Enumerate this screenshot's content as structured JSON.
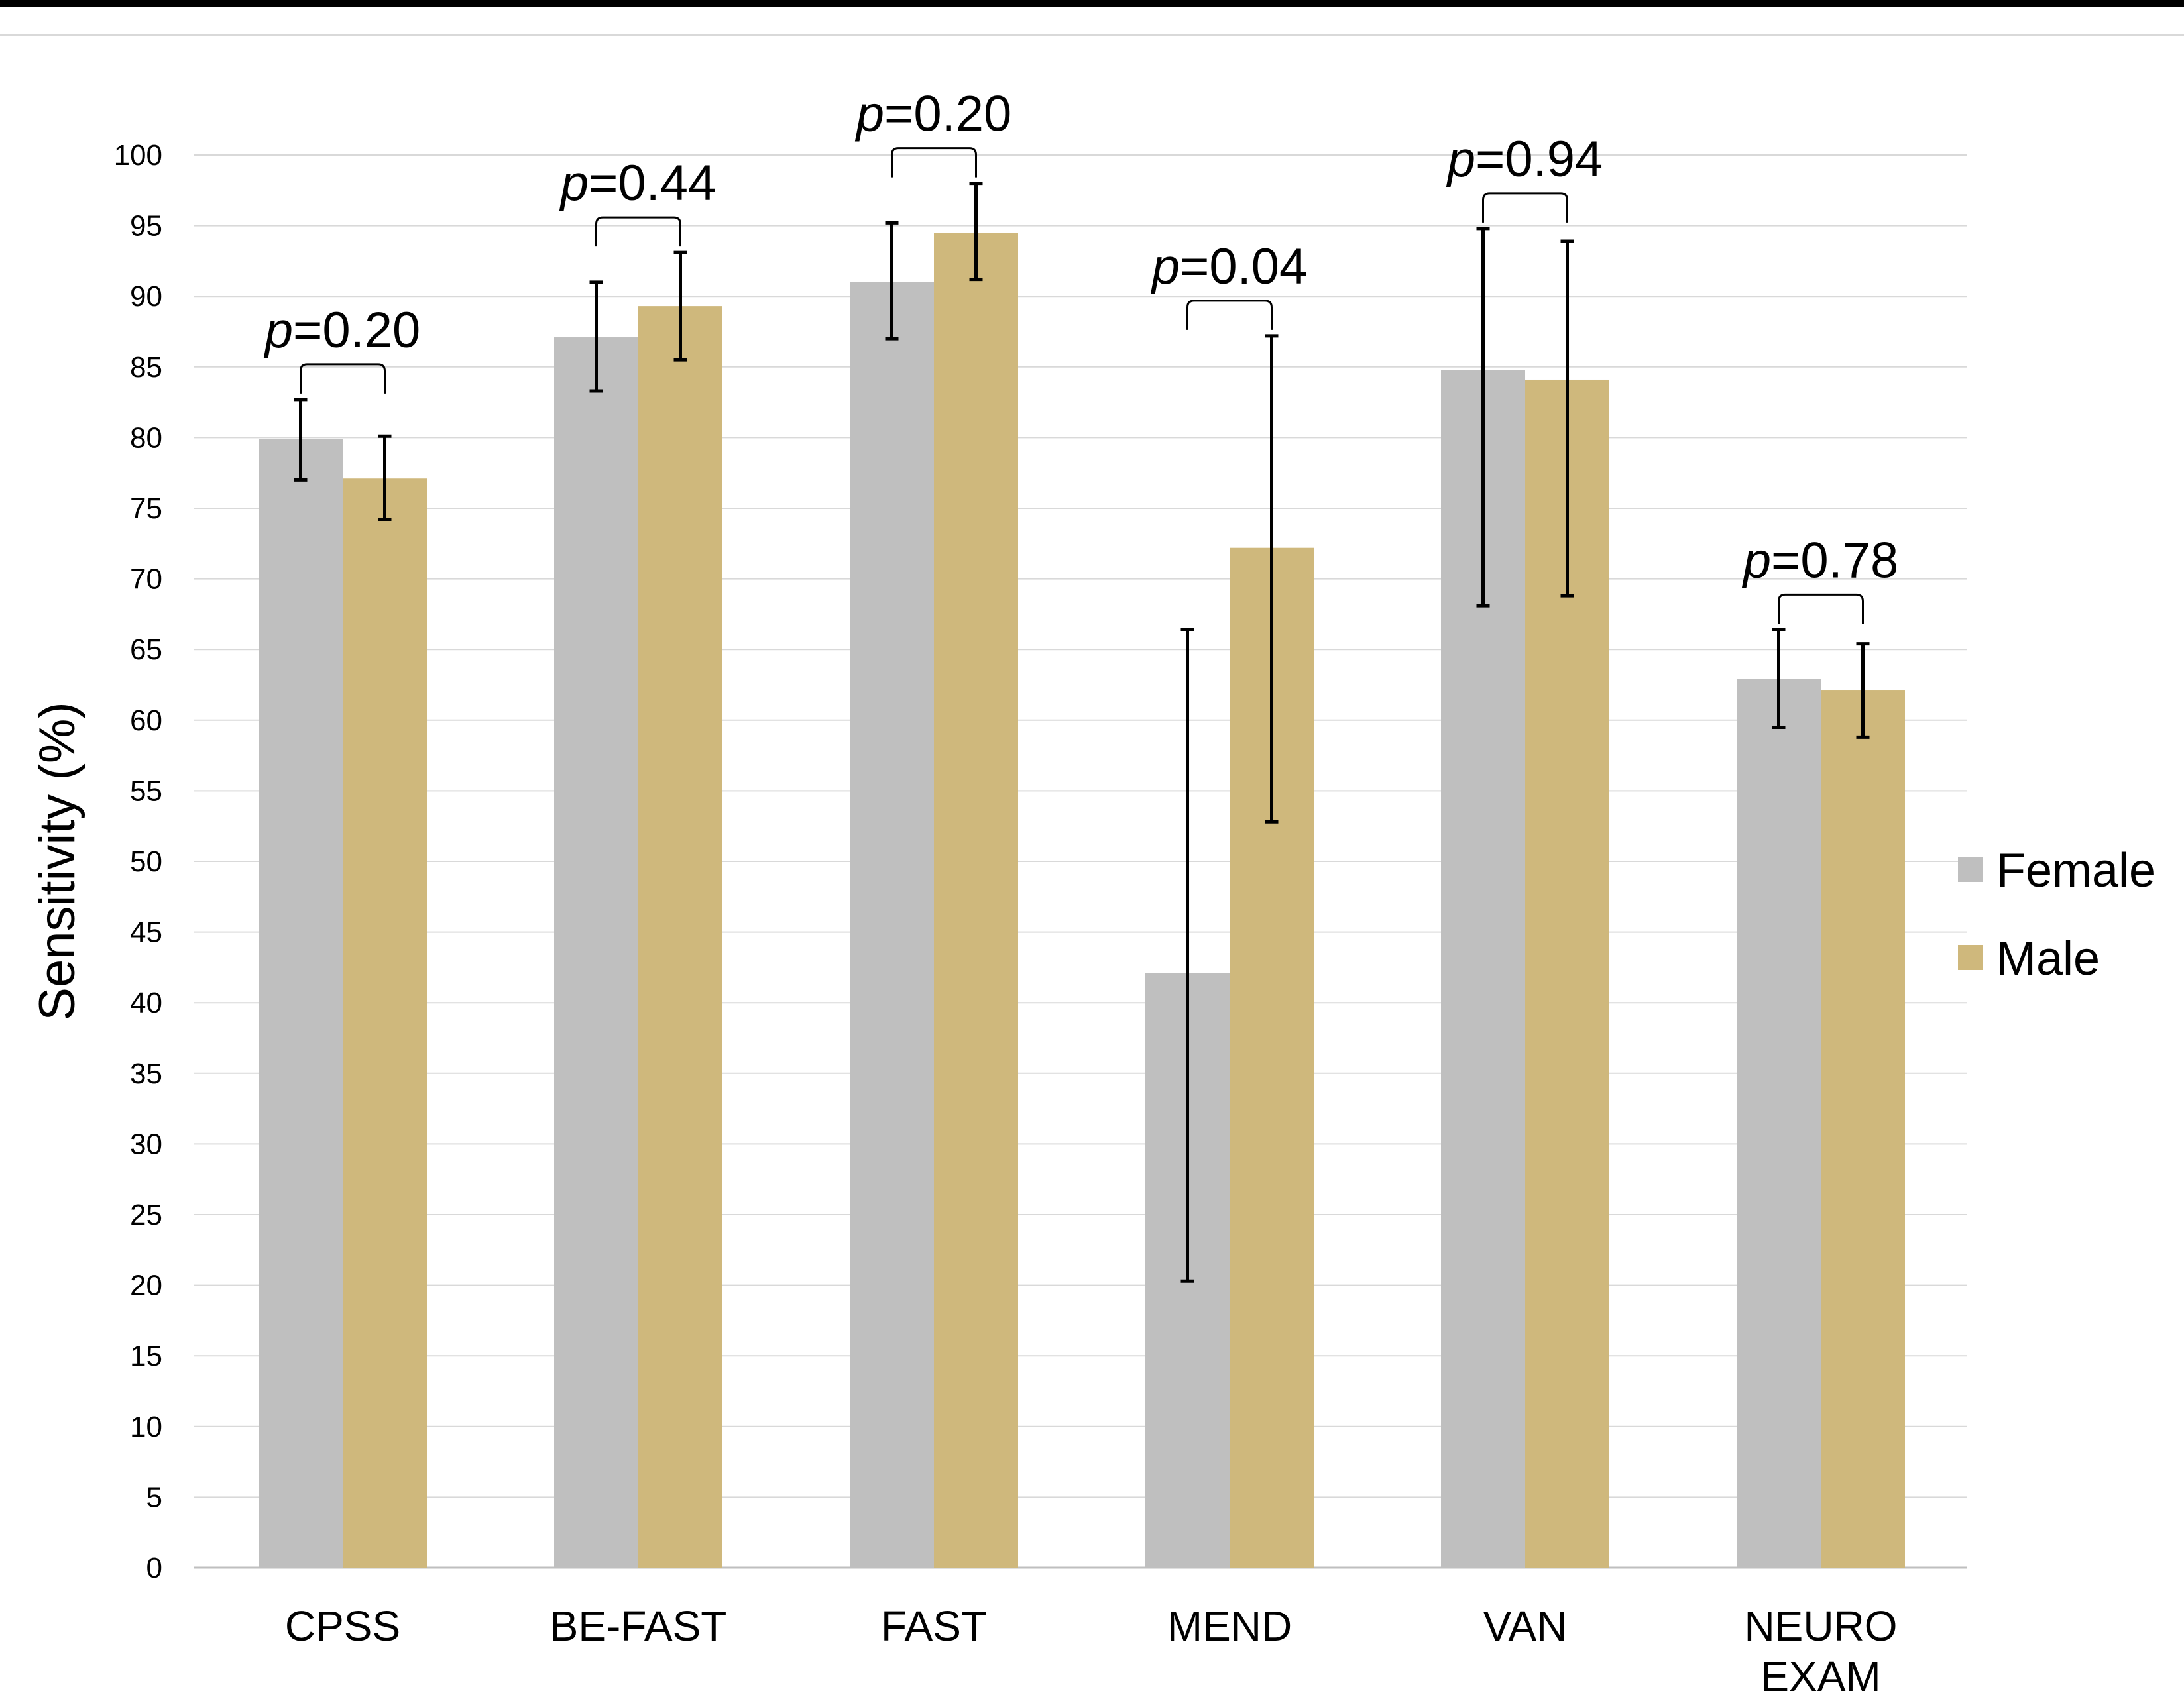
{
  "chart_data": {
    "type": "bar",
    "title": "",
    "xlabel": "",
    "ylabel": "Sensitivity (%)",
    "ylim": [
      0,
      100
    ],
    "yticks": [
      0,
      5,
      10,
      15,
      20,
      25,
      30,
      35,
      40,
      45,
      50,
      55,
      60,
      65,
      70,
      75,
      80,
      85,
      90,
      95,
      100
    ],
    "grid": true,
    "legend_position": "right",
    "categories": [
      {
        "lines": [
          "CPSS"
        ]
      },
      {
        "lines": [
          "BE-FAST"
        ]
      },
      {
        "lines": [
          "FAST"
        ]
      },
      {
        "lines": [
          "MEND"
        ]
      },
      {
        "lines": [
          "VAN"
        ]
      },
      {
        "lines": [
          "NEURO",
          "EXAM"
        ]
      }
    ],
    "series": [
      {
        "name": "Female",
        "color": "#bfbfbf",
        "values": [
          79.9,
          87.1,
          91.0,
          42.1,
          84.8,
          62.9
        ],
        "error_low": [
          77.0,
          83.3,
          87.0,
          20.3,
          68.1,
          59.5
        ],
        "error_high": [
          82.7,
          91.0,
          95.2,
          66.4,
          94.8,
          66.4
        ]
      },
      {
        "name": "Male",
        "color": "#cfb87c",
        "values": [
          77.1,
          89.3,
          94.5,
          72.2,
          84.1,
          62.1
        ],
        "error_low": [
          74.2,
          85.5,
          91.2,
          52.8,
          68.8,
          58.8
        ],
        "error_high": [
          80.1,
          93.1,
          98.0,
          87.2,
          93.9,
          65.4
        ]
      }
    ],
    "annotations": [
      {
        "italic": "p",
        "text": "=0.20"
      },
      {
        "italic": "p",
        "text": "=0.44"
      },
      {
        "italic": "p",
        "text": "=0.20"
      },
      {
        "italic": "p",
        "text": "=0.04"
      },
      {
        "italic": "p",
        "text": "=0.94"
      },
      {
        "italic": "p",
        "text": "=0.78"
      }
    ]
  }
}
